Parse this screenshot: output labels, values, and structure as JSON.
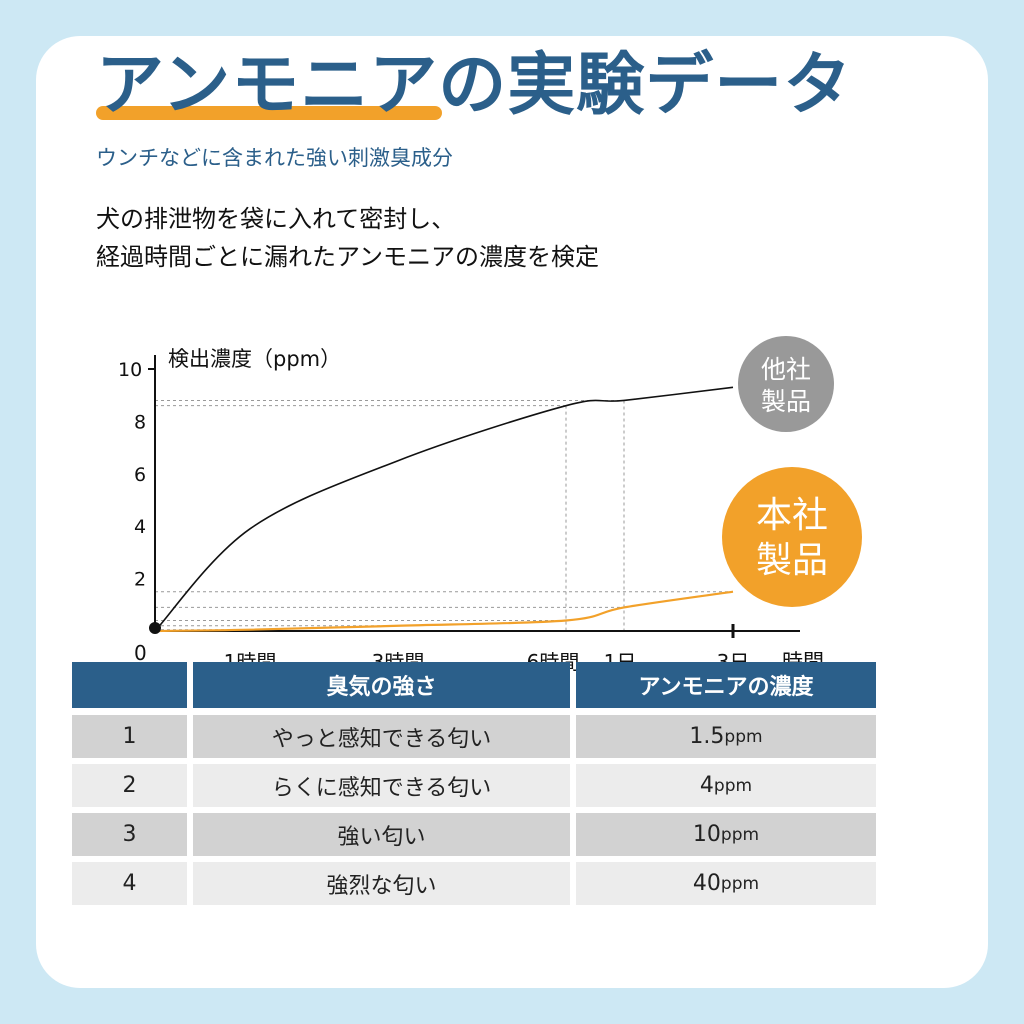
{
  "header": {
    "title": "アンモニアの実験データ",
    "subtitle": "ウンチなどに含まれた強い刺激臭成分",
    "description_line1": "犬の排泄物を袋に入れて密封し、",
    "description_line2": "経過時間ごとに漏れたアンモニアの濃度を検定"
  },
  "colors": {
    "background": "#cde8f4",
    "title": "#2b5f8a",
    "accent": "#f2a12a",
    "competitor": "#999999",
    "table_header": "#2b5f8a"
  },
  "chart_data": {
    "type": "line",
    "ylabel": "検出濃度（ppm）",
    "xlabel": "時間",
    "origin_label": "0",
    "y_ticks": [
      "10",
      "8",
      "6",
      "4",
      "2"
    ],
    "x_ticks": [
      "1時間",
      "3時間",
      "6時間",
      "1日",
      "3日"
    ],
    "ylim": [
      0,
      10
    ],
    "series": [
      {
        "name": "他社製品",
        "label_line1": "他社",
        "label_line2": "製品",
        "color": "#111111",
        "values": [
          0,
          3.9,
          6.5,
          8.6,
          8.8,
          9.3
        ]
      },
      {
        "name": "本社製品",
        "label_line1": "本社",
        "label_line2": "製品",
        "color": "#f2a12a",
        "values": [
          0,
          0.05,
          0.2,
          0.4,
          0.9,
          1.5
        ]
      }
    ]
  },
  "table": {
    "headers": [
      "",
      "臭気の強さ",
      "アンモニアの濃度"
    ],
    "rows": [
      {
        "level": "1",
        "description": "やっと感知できる匂い",
        "value": "1.5",
        "unit": "ppm"
      },
      {
        "level": "2",
        "description": "らくに感知できる匂い",
        "value": "4 ",
        "unit": "ppm"
      },
      {
        "level": "3",
        "description": "強い匂い",
        "value": "10",
        "unit": "ppm"
      },
      {
        "level": "4",
        "description": "強烈な匂い",
        "value": "40",
        "unit": "ppm"
      }
    ]
  }
}
